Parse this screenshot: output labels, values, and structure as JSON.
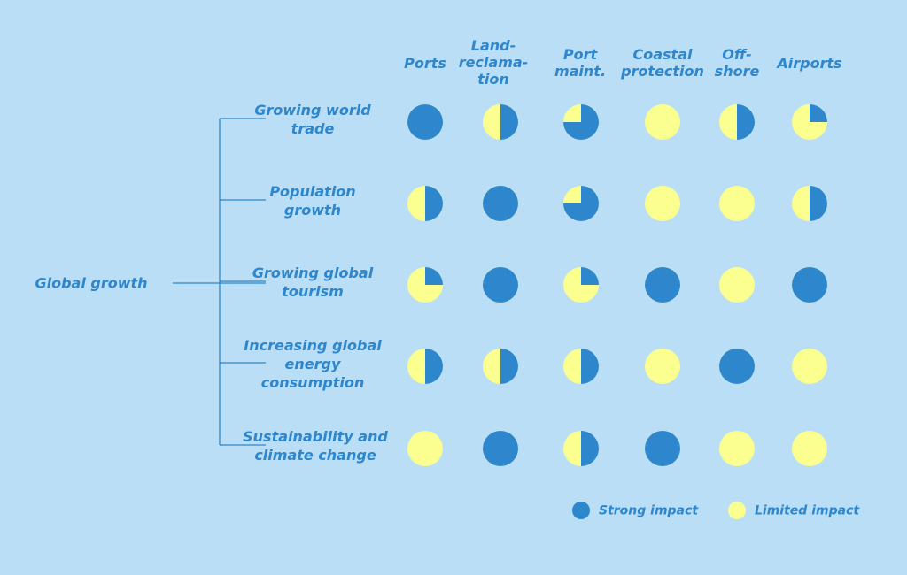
{
  "colors": {
    "strong": "#2e86cc",
    "limited": "#faff8f",
    "background": "#b9def5",
    "line": "#2e86cc"
  },
  "root": {
    "label": "Global growth"
  },
  "columns": [
    {
      "label": "Ports"
    },
    {
      "label": "Land-\nreclama-\ntion"
    },
    {
      "label": "Port\nmaint."
    },
    {
      "label": "Coastal\nprotection"
    },
    {
      "label": "Off-\nshore"
    },
    {
      "label": "Airports"
    }
  ],
  "rows": [
    {
      "label": "Growing world\ntrade",
      "impacts": [
        1,
        0.5,
        0.75,
        0,
        0.5,
        0.25
      ]
    },
    {
      "label": "Population\ngrowth",
      "impacts": [
        0.5,
        1,
        0.75,
        0,
        0,
        0.5
      ]
    },
    {
      "label": "Growing global\ntourism",
      "impacts": [
        0.25,
        1,
        0.25,
        1,
        0,
        1
      ]
    },
    {
      "label": "Increasing global\nenergy\nconsumption",
      "impacts": [
        0.5,
        0.5,
        0.5,
        0,
        1,
        0
      ]
    },
    {
      "label": "Sustainability and\nclimate change",
      "impacts": [
        0,
        1,
        0.5,
        1,
        0,
        0
      ]
    }
  ],
  "legend": {
    "strong_label": "Strong impact",
    "limited_label": "Limited impact"
  }
}
